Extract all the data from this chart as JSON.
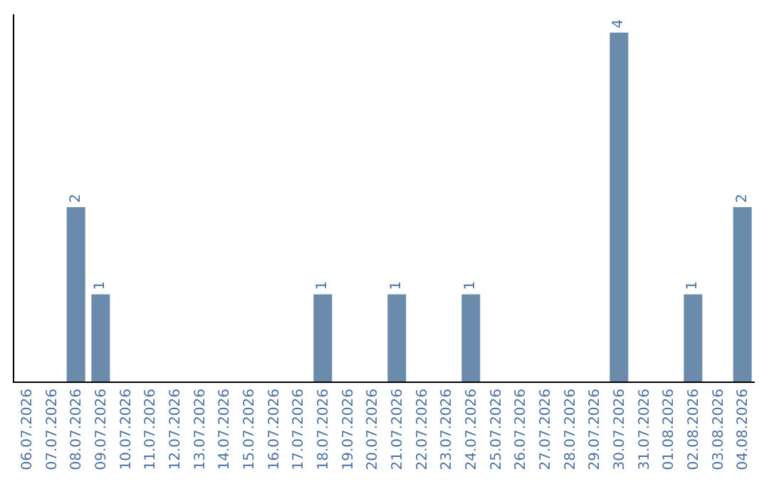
{
  "chart_data": {
    "type": "bar",
    "color": "#6b8bad",
    "categories": [
      "06.07.2026",
      "07.07.2026",
      "08.07.2026",
      "09.07.2026",
      "10.07.2026",
      "11.07.2026",
      "12.07.2026",
      "13.07.2026",
      "14.07.2026",
      "15.07.2026",
      "16.07.2026",
      "17.07.2026",
      "18.07.2026",
      "19.07.2026",
      "20.07.2026",
      "21.07.2026",
      "22.07.2026",
      "23.07.2026",
      "24.07.2026",
      "25.07.2026",
      "26.07.2026",
      "27.07.2026",
      "28.07.2026",
      "29.07.2026",
      "30.07.2026",
      "31.07.2026",
      "01.08.2026",
      "02.08.2026",
      "03.08.2026",
      "04.08.2026"
    ],
    "values": [
      0,
      0,
      2,
      1,
      0,
      0,
      0,
      0,
      0,
      0,
      0,
      0,
      1,
      0,
      0,
      1,
      0,
      0,
      1,
      0,
      0,
      0,
      0,
      0,
      4,
      0,
      0,
      1,
      0,
      2
    ],
    "value_labels": [
      null,
      null,
      "2",
      "1",
      null,
      null,
      null,
      null,
      null,
      null,
      null,
      null,
      "1",
      null,
      null,
      "1",
      null,
      null,
      "1",
      null,
      null,
      null,
      null,
      null,
      "4",
      null,
      null,
      "1",
      null,
      "2"
    ],
    "grid": false,
    "legend": false,
    "tick_labels": "x"
  }
}
